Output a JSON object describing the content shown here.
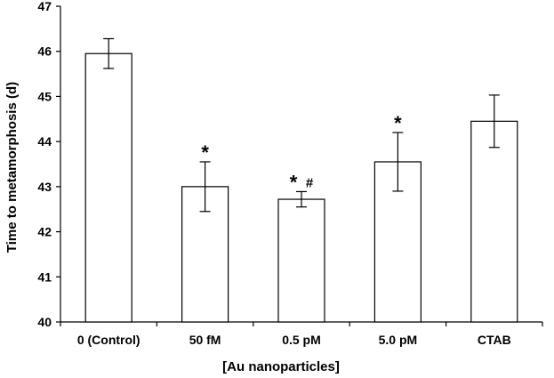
{
  "chart_data": {
    "type": "bar",
    "title": "",
    "xlabel": "[Au nanoparticles]",
    "ylabel": "Time to metamorphosis (d)",
    "ylim": [
      40,
      47
    ],
    "yticks": [
      "40",
      "41",
      "42",
      "43",
      "44",
      "45",
      "46",
      "47"
    ],
    "categories": [
      "0 (Control)",
      "50 fM",
      "0.5 pM",
      "5.0 pM",
      "CTAB"
    ],
    "values": [
      45.95,
      43.0,
      42.72,
      43.55,
      44.45
    ],
    "errors": [
      0.33,
      0.55,
      0.17,
      0.65,
      0.58
    ],
    "annotations": [
      {
        "category_index": 1,
        "text": "*"
      },
      {
        "category_index": 2,
        "text": "*"
      },
      {
        "category_index": 2,
        "text": "#"
      },
      {
        "category_index": 3,
        "text": "*"
      }
    ],
    "grid": false,
    "legend": "none",
    "bar_fill": "#ffffff",
    "bar_stroke": "#000000"
  }
}
